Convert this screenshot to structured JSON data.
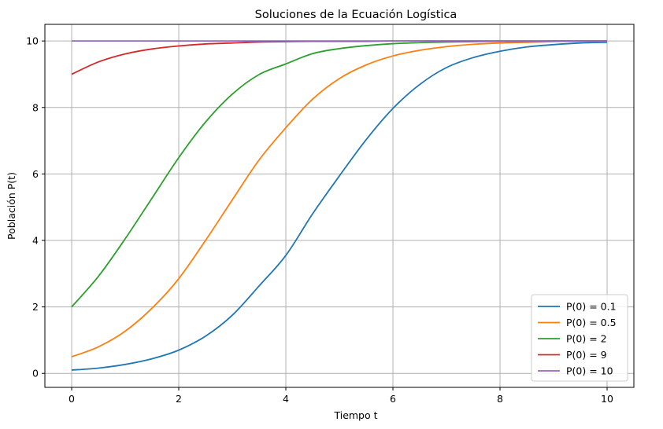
{
  "chart_data": {
    "type": "line",
    "title": "Soluciones de la Ecuación Logística",
    "xlabel": "Tiempo t",
    "ylabel": "Población P(t)",
    "xlim": [
      -0.5,
      10.5
    ],
    "ylim": [
      -0.42,
      10.5
    ],
    "xticks": [
      0,
      2,
      4,
      6,
      8,
      10
    ],
    "yticks": [
      0,
      2,
      4,
      6,
      8,
      10
    ],
    "grid": true,
    "legend_position": "lower-right",
    "x": [
      0,
      0.5,
      1,
      1.5,
      2,
      2.5,
      3,
      3.5,
      4,
      4.5,
      5,
      5.5,
      6,
      6.5,
      7,
      7.5,
      8,
      8.5,
      9,
      9.5,
      10
    ],
    "series": [
      {
        "name": "P(0) = 0.1",
        "color": "#1f77b4",
        "values": [
          0.1,
          0.16,
          0.27,
          0.44,
          0.7,
          1.12,
          1.75,
          2.63,
          3.55,
          4.8,
          5.94,
          7.03,
          7.97,
          8.69,
          9.2,
          9.5,
          9.69,
          9.82,
          9.89,
          9.94,
          9.96
        ]
      },
      {
        "name": "P(0) = 0.5",
        "color": "#ff7f0e",
        "values": [
          0.5,
          0.8,
          1.27,
          1.96,
          2.85,
          4.0,
          5.22,
          6.42,
          7.39,
          8.25,
          8.87,
          9.28,
          9.55,
          9.72,
          9.83,
          9.9,
          9.94,
          9.96,
          9.98,
          9.99,
          9.99
        ]
      },
      {
        "name": "P(0) = 2",
        "color": "#2ca02c",
        "values": [
          2.0,
          2.92,
          4.05,
          5.27,
          6.49,
          7.56,
          8.4,
          8.99,
          9.31,
          9.62,
          9.77,
          9.86,
          9.92,
          9.95,
          9.97,
          9.98,
          9.99,
          9.99,
          10.0,
          10.0,
          10.0
        ]
      },
      {
        "name": "P(0) = 9",
        "color": "#d62728",
        "values": [
          9.0,
          9.37,
          9.61,
          9.76,
          9.85,
          9.91,
          9.94,
          9.97,
          9.98,
          9.99,
          9.99,
          9.99,
          10.0,
          10.0,
          10.0,
          10.0,
          10.0,
          10.0,
          10.0,
          10.0,
          10.0
        ]
      },
      {
        "name": "P(0) = 10",
        "color": "#9467bd",
        "values": [
          10,
          10,
          10,
          10,
          10,
          10,
          10,
          10,
          10,
          10,
          10,
          10,
          10,
          10,
          10,
          10,
          10,
          10,
          10,
          10,
          10
        ]
      }
    ]
  }
}
